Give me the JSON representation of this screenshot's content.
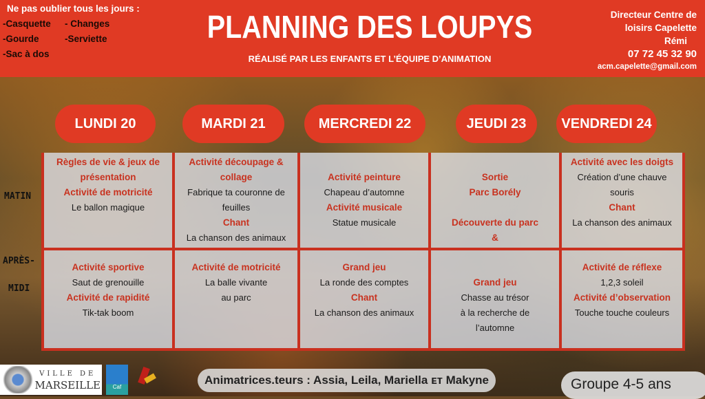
{
  "reminder": {
    "title": "Ne pas oublier tous les jours :",
    "items": [
      [
        "-Casquette",
        "- Changes"
      ],
      [
        "-Gourde",
        "-Serviette"
      ],
      [
        "-Sac à dos",
        ""
      ]
    ]
  },
  "header": {
    "title": "PLANNING DES LOUPYS",
    "subtitle": "RÉALISÉ PAR LES ENFANTS ET L’ÉQUIPE D’ANIMATION"
  },
  "contact": {
    "line1": "Directeur Centre de",
    "line2": "loisirs Capelette",
    "name": "Rémi",
    "phone": "07 72 45 32 90",
    "email": "acm.capelette@gmail.com"
  },
  "days": [
    "LUNDI 20",
    "MARDI 21",
    "MERCREDI 22",
    "JEUDI 23",
    "VENDREDI 24"
  ],
  "labels": {
    "morning": "MATIN",
    "afternoon1": "APRÈS-",
    "afternoon2": "MIDI"
  },
  "morning": [
    [
      {
        "t": "Règles de vie & jeux de",
        "r": 1
      },
      {
        "t": "présentation",
        "r": 1
      },
      {
        "t": "Activité de motricité",
        "r": 1
      },
      {
        "t": "Le ballon magique",
        "r": 0
      }
    ],
    [
      {
        "t": "Activité découpage &",
        "r": 1
      },
      {
        "t": "collage",
        "r": 1
      },
      {
        "t": "Fabrique ta couronne de",
        "r": 0
      },
      {
        "t": "feuilles",
        "r": 0
      },
      {
        "t": "Chant",
        "r": 1
      },
      {
        "t": "La chanson des animaux",
        "r": 0
      }
    ],
    [
      {
        "t": "",
        "r": 0
      },
      {
        "t": "Activité peinture",
        "r": 1
      },
      {
        "t": "Chapeau d’automne",
        "r": 0
      },
      {
        "t": "Activité musicale",
        "r": 1
      },
      {
        "t": "Statue musicale",
        "r": 0
      }
    ],
    [
      {
        "t": "",
        "r": 0
      },
      {
        "t": "Sortie",
        "r": 1
      },
      {
        "t": "Parc Borély",
        "r": 1
      },
      {
        "t": "",
        "r": 0
      },
      {
        "t": "Découverte du parc",
        "r": 1
      },
      {
        "t": "&",
        "r": 1
      }
    ],
    [
      {
        "t": "Activité avec les doigts",
        "r": 1
      },
      {
        "t": "Création d’une chauve",
        "r": 0
      },
      {
        "t": "souris",
        "r": 0
      },
      {
        "t": "Chant",
        "r": 1
      },
      {
        "t": "La chanson des animaux",
        "r": 0
      }
    ]
  ],
  "afternoon": [
    [
      {
        "t": "Activité sportive",
        "r": 1
      },
      {
        "t": "Saut de grenouille",
        "r": 0
      },
      {
        "t": "Activité de rapidité",
        "r": 1
      },
      {
        "t": "Tik-tak boom",
        "r": 0
      }
    ],
    [
      {
        "t": "Activité de motricité",
        "r": 1
      },
      {
        "t": "La balle vivante",
        "r": 0
      },
      {
        "t": "au parc",
        "r": 0
      }
    ],
    [
      {
        "t": "Grand jeu",
        "r": 1
      },
      {
        "t": "La ronde des comptes",
        "r": 0
      },
      {
        "t": "Chant",
        "r": 1
      },
      {
        "t": "La chanson des animaux",
        "r": 0
      }
    ],
    [
      {
        "t": "",
        "r": 0
      },
      {
        "t": "Grand jeu",
        "r": 1
      },
      {
        "t": "Chasse au trésor",
        "r": 0
      },
      {
        "t": "à la recherche de",
        "r": 0
      },
      {
        "t": "l’automne",
        "r": 0
      }
    ],
    [
      {
        "t": "Activité de réflexe",
        "r": 1
      },
      {
        "t": "1,2,3 soleil",
        "r": 0
      },
      {
        "t": "Activité d’observation",
        "r": 1
      },
      {
        "t": "Touche touche couleurs",
        "r": 0
      }
    ]
  ],
  "logos": {
    "marseille_top": "VILLE DE",
    "marseille_bottom": "MARSEILLE",
    "caf": "Caf"
  },
  "footer": {
    "animators": "Animatrices.teurs : Assia, Leila, Mariella ᴇᴛ Makyne",
    "group": "Groupe 4-5 ans"
  },
  "colors": {
    "accent": "#e03a24",
    "border": "#c9301f"
  }
}
